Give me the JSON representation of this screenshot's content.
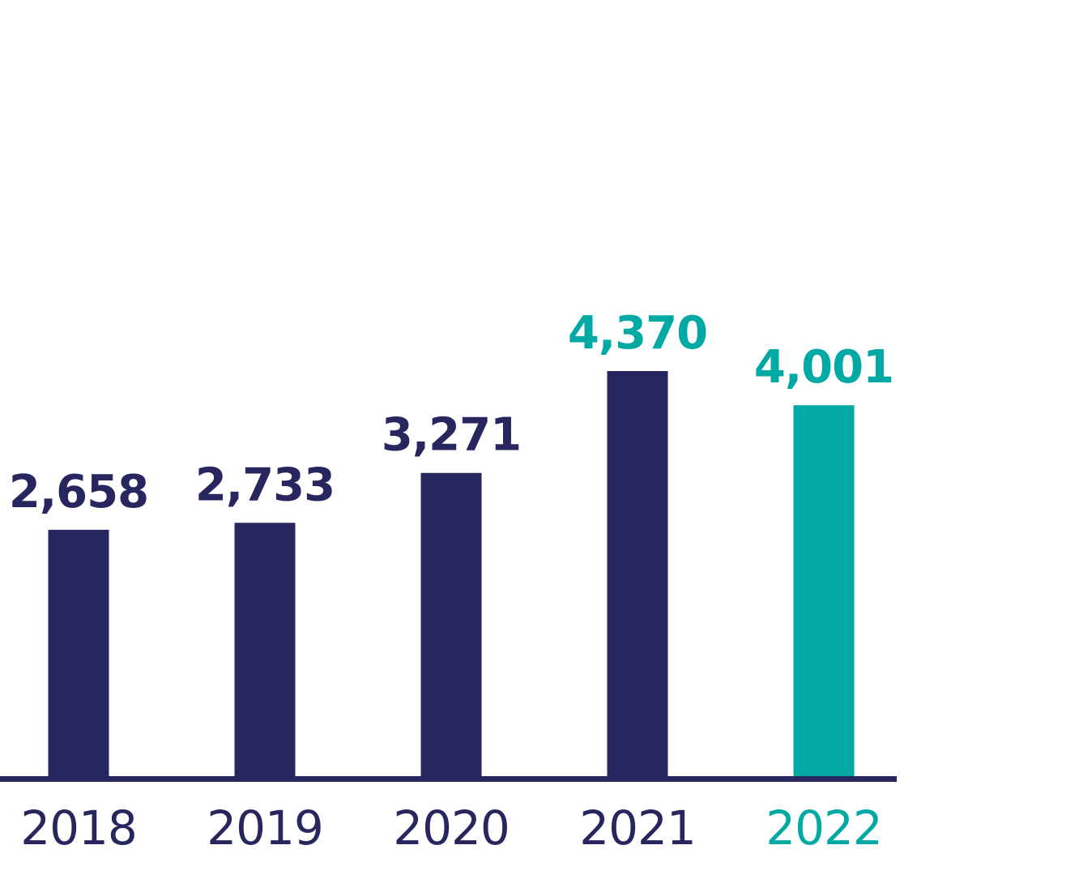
{
  "chart_data": {
    "type": "bar",
    "categories": [
      "2018",
      "2019",
      "2020",
      "2021",
      "2022"
    ],
    "values": [
      2658,
      2733,
      3271,
      4370,
      4001
    ],
    "value_labels": [
      "2,658",
      "2,733",
      "3,271",
      "4,370",
      "4,001"
    ],
    "title": "",
    "xlabel": "",
    "ylabel": "",
    "ylim": [
      0,
      4370
    ],
    "grid": false,
    "colors": {
      "bar_default": "#27265f",
      "bar_highlight": "#00a9a4",
      "label_default": "#27265f",
      "label_highlight": "#00a9a4",
      "axis": "#27265f"
    },
    "highlighted_bars": [
      "2022"
    ],
    "highlighted_value_labels": [
      "2021",
      "2022"
    ],
    "highlighted_category_labels": [
      "2022"
    ]
  }
}
